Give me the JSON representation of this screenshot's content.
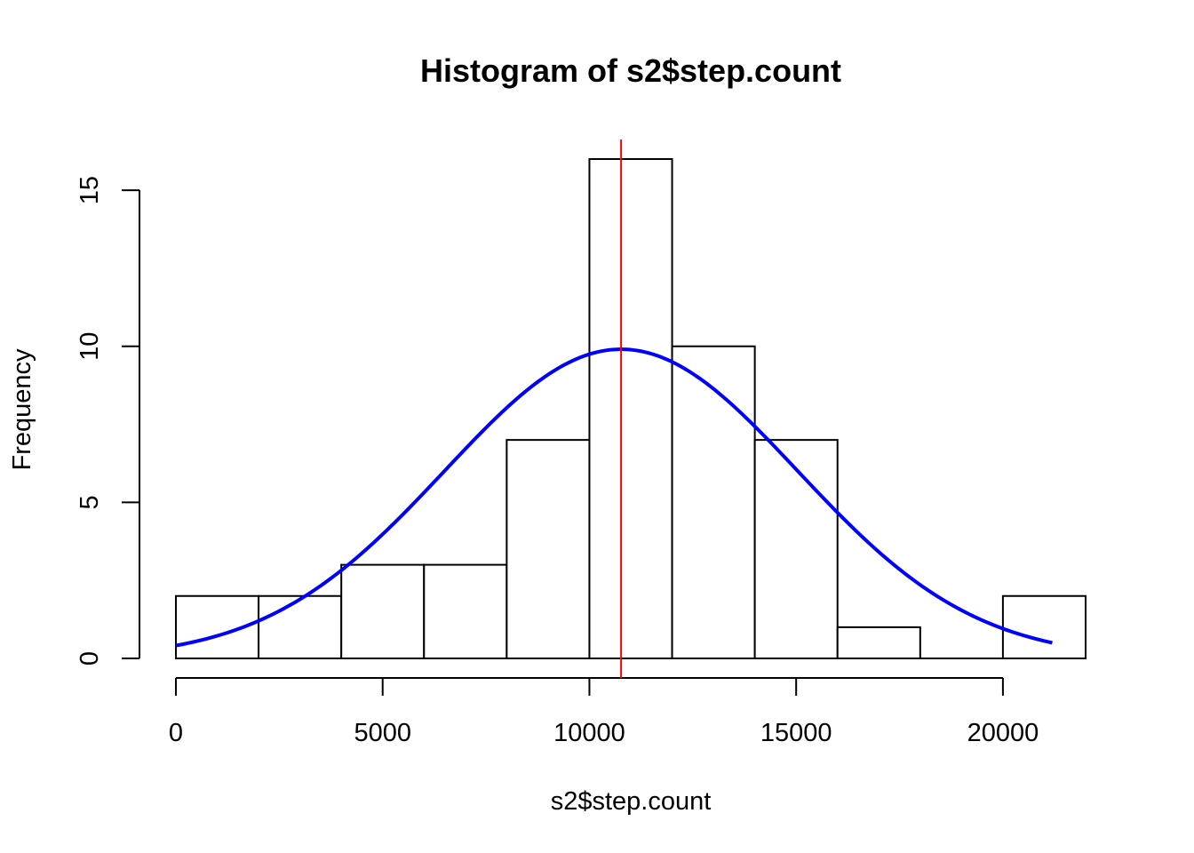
{
  "chart_data": {
    "type": "bar",
    "subtype": "histogram",
    "title": "Histogram of s2$step.count",
    "xlabel": "s2$step.count",
    "ylabel": "Frequency",
    "bins": [
      {
        "start": 0,
        "end": 2000,
        "count": 2
      },
      {
        "start": 2000,
        "end": 4000,
        "count": 2
      },
      {
        "start": 4000,
        "end": 6000,
        "count": 3
      },
      {
        "start": 6000,
        "end": 8000,
        "count": 3
      },
      {
        "start": 8000,
        "end": 10000,
        "count": 7
      },
      {
        "start": 10000,
        "end": 12000,
        "count": 16
      },
      {
        "start": 12000,
        "end": 14000,
        "count": 10
      },
      {
        "start": 14000,
        "end": 16000,
        "count": 7
      },
      {
        "start": 16000,
        "end": 18000,
        "count": 1
      },
      {
        "start": 18000,
        "end": 20000,
        "count": 0
      },
      {
        "start": 20000,
        "end": 22000,
        "count": 2
      }
    ],
    "xlim": [
      0,
      22000
    ],
    "ylim": [
      0,
      16
    ],
    "x_ticks": [
      0,
      5000,
      10000,
      15000,
      20000
    ],
    "x_tick_labels": [
      "0",
      "5000",
      "10000",
      "15000",
      "20000"
    ],
    "y_ticks": [
      0,
      5,
      10,
      15
    ],
    "y_tick_labels": [
      "0",
      "5",
      "10",
      "15"
    ],
    "mean_line": {
      "x": 10766,
      "color": "#ff0000"
    },
    "density_curve": {
      "type": "normal",
      "mean": 10766,
      "sd": 4269,
      "x_range": [
        0,
        21194
      ],
      "color": "#0000ff"
    },
    "bar_fill": "#ffffff",
    "bar_stroke": "#000000",
    "grid": false
  }
}
